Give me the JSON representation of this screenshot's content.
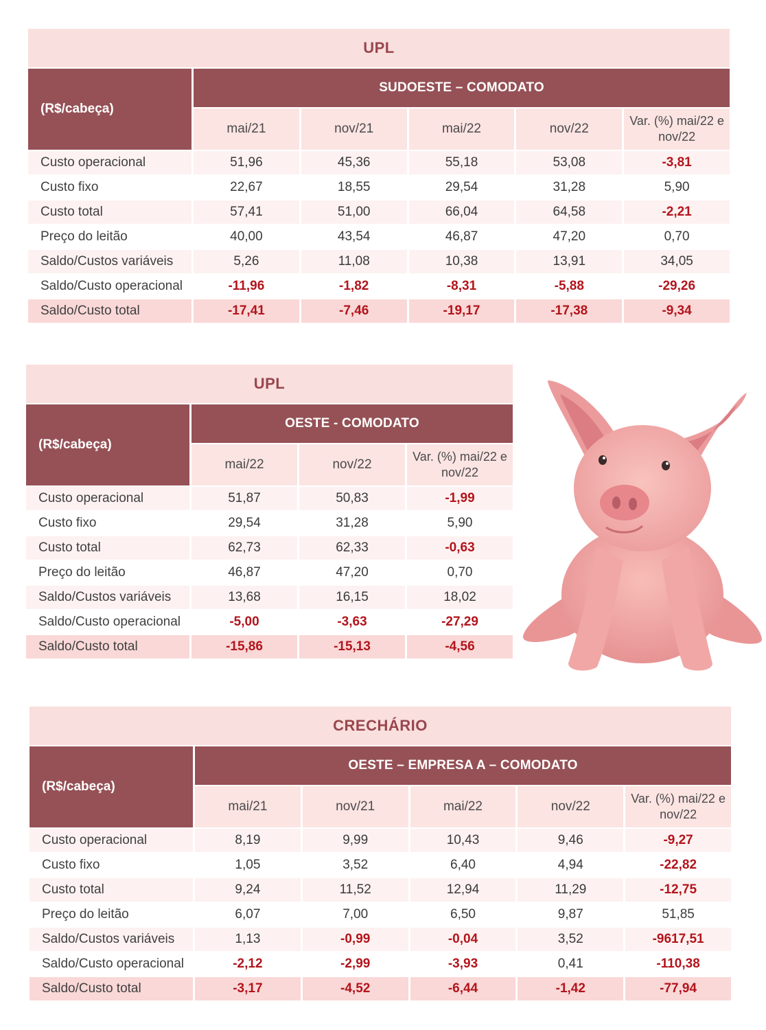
{
  "tables": [
    {
      "title": "UPL",
      "unit": "(R$/cabeça)",
      "region": "SUDOESTE – COMODATO",
      "periods": [
        "mai/21",
        "nov/21",
        "mai/22",
        "nov/22",
        "Var. (%) mai/22 e nov/22"
      ],
      "rows": [
        {
          "label": "Custo operacional",
          "values": [
            "51,96",
            "45,36",
            "55,18",
            "53,08",
            "-3,81"
          ]
        },
        {
          "label": "Custo fixo",
          "values": [
            "22,67",
            "18,55",
            "29,54",
            "31,28",
            "5,90"
          ]
        },
        {
          "label": "Custo total",
          "values": [
            "57,41",
            "51,00",
            "66,04",
            "64,58",
            "-2,21"
          ]
        },
        {
          "label": "Preço do leitão",
          "values": [
            "40,00",
            "43,54",
            "46,87",
            "47,20",
            "0,70"
          ]
        },
        {
          "label": "Saldo/Custos variáveis",
          "values": [
            "5,26",
            "11,08",
            "10,38",
            "13,91",
            "34,05"
          ]
        },
        {
          "label": "Saldo/Custo operacional",
          "values": [
            "-11,96",
            "-1,82",
            "-8,31",
            "-5,88",
            "-29,26"
          ]
        },
        {
          "label": "Saldo/Custo total",
          "values": [
            "-17,41",
            "-7,46",
            "-19,17",
            "-17,38",
            "-9,34"
          ]
        }
      ]
    },
    {
      "title": "UPL",
      "unit": "(R$/cabeça)",
      "region": "OESTE - COMODATO",
      "periods": [
        "mai/22",
        "nov/22",
        "Var. (%) mai/22 e nov/22"
      ],
      "rows": [
        {
          "label": "Custo operacional",
          "values": [
            "51,87",
            "50,83",
            "-1,99"
          ]
        },
        {
          "label": "Custo fixo",
          "values": [
            "29,54",
            "31,28",
            "5,90"
          ]
        },
        {
          "label": "Custo total",
          "values": [
            "62,73",
            "62,33",
            "-0,63"
          ]
        },
        {
          "label": "Preço do leitão",
          "values": [
            "46,87",
            "47,20",
            "0,70"
          ]
        },
        {
          "label": "Saldo/Custos variáveis",
          "values": [
            "13,68",
            "16,15",
            "18,02"
          ]
        },
        {
          "label": "Saldo/Custo operacional",
          "values": [
            "-5,00",
            "-3,63",
            "-27,29"
          ]
        },
        {
          "label": "Saldo/Custo total",
          "values": [
            "-15,86",
            "-15,13",
            "-4,56"
          ]
        }
      ]
    },
    {
      "title": "CRECHÁRIO",
      "unit": "(R$/cabeça)",
      "region": "OESTE – EMPRESA A – COMODATO",
      "periods": [
        "mai/21",
        "nov/21",
        "mai/22",
        "nov/22",
        "Var. (%) mai/22 e nov/22"
      ],
      "rows": [
        {
          "label": "Custo operacional",
          "values": [
            "8,19",
            "9,99",
            "10,43",
            "9,46",
            "-9,27"
          ]
        },
        {
          "label": "Custo fixo",
          "values": [
            "1,05",
            "3,52",
            "6,40",
            "4,94",
            "-22,82"
          ]
        },
        {
          "label": "Custo total",
          "values": [
            "9,24",
            "11,52",
            "12,94",
            "11,29",
            "-12,75"
          ]
        },
        {
          "label": "Preço do leitão",
          "values": [
            "6,07",
            "7,00",
            "6,50",
            "9,87",
            "51,85"
          ]
        },
        {
          "label": "Saldo/Custos variáveis",
          "values": [
            "1,13",
            "-0,99",
            "-0,04",
            "3,52",
            "-9617,51"
          ]
        },
        {
          "label": "Saldo/Custo operacional",
          "values": [
            "-2,12",
            "-2,99",
            "-3,93",
            "0,41",
            "-110,38"
          ]
        },
        {
          "label": "Saldo/Custo total",
          "values": [
            "-3,17",
            "-4,52",
            "-6,44",
            "-1,42",
            "-77,94"
          ]
        }
      ]
    }
  ],
  "illustration": {
    "icon": "pig-illustration",
    "colors": {
      "body": "#f2a3a0",
      "shade": "#d9787a",
      "ear_inner": "#e88a8f",
      "snout": "#e7868b"
    }
  },
  "colors": {
    "header_dark": "#955156",
    "header_light": "#f9dfdd",
    "title_text": "#98464d",
    "negative": "#b3141c"
  }
}
